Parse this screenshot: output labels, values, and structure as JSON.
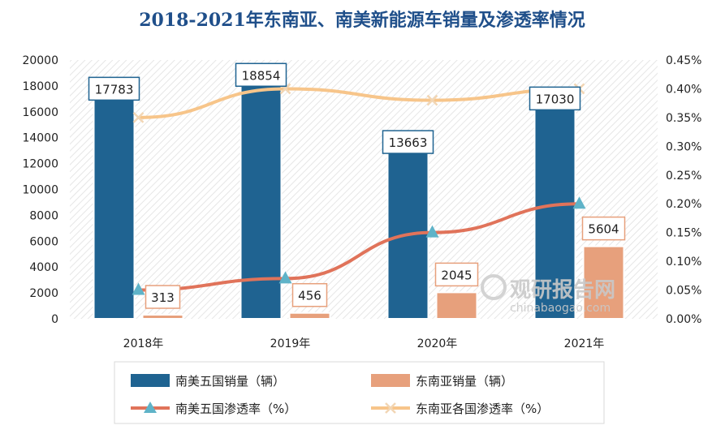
{
  "chart_data": {
    "type": "bar+line",
    "title": "2018-2021年东南亚、南美新能源车销量及渗透率情况",
    "categories": [
      "2018年",
      "2019年",
      "2020年",
      "2021年"
    ],
    "bar_series": [
      {
        "name": "南美五国销量（辆）",
        "color": "#1f6391",
        "values": [
          17783,
          18854,
          13663,
          17030
        ]
      },
      {
        "name": "东南亚销量（辆）",
        "color": "#e7a07c",
        "values": [
          313,
          456,
          2045,
          5604
        ]
      }
    ],
    "line_series": [
      {
        "name": "南美五国渗透率（%）",
        "color": "#e0735a",
        "marker": "triangle",
        "marker_color": "#5fb3c8",
        "values": [
          0.05,
          0.07,
          0.15,
          0.2
        ]
      },
      {
        "name": "东南亚各国渗透率（%）",
        "color": "#f7c58a",
        "marker": "x",
        "marker_color": "#f2d6b4",
        "values": [
          0.35,
          0.4,
          0.38,
          0.4
        ]
      }
    ],
    "y_left": {
      "min": 0,
      "max": 20000,
      "step": 2000,
      "ticks": [
        "0",
        "2000",
        "4000",
        "6000",
        "8000",
        "10000",
        "12000",
        "14000",
        "16000",
        "18000",
        "20000"
      ]
    },
    "y_right": {
      "min": 0,
      "max": 0.45,
      "step": 0.05,
      "ticks": [
        "0.00%",
        "0.05%",
        "0.10%",
        "0.15%",
        "0.20%",
        "0.25%",
        "0.30%",
        "0.35%",
        "0.40%",
        "0.45%"
      ]
    },
    "legend_position": "bottom",
    "watermark": {
      "cn": "观研报告网",
      "en": "chinabaogao.com"
    }
  }
}
